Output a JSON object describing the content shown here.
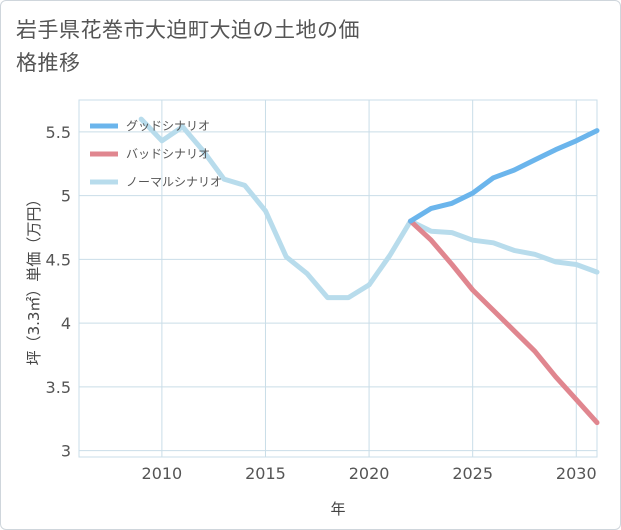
{
  "title": "岩手県花巻市大迫町大迫の土地の価格推移",
  "chart_data": {
    "type": "line",
    "title": "岩手県花巻市大迫町大迫の土地の価格推移",
    "xlabel": "年",
    "ylabel": "坪（3.3㎡）単価（万円）",
    "xlim": [
      2006,
      2031
    ],
    "ylim": [
      2.95,
      5.75
    ],
    "xticks": [
      2010,
      2015,
      2020,
      2025,
      2030
    ],
    "yticks": [
      3,
      3.5,
      4,
      4.5,
      5,
      5.5
    ],
    "ytick_labels": [
      "3",
      "3.5",
      "4",
      "4.5",
      "5",
      "5.5"
    ],
    "grid": true,
    "legend_position": "top-left",
    "series": [
      {
        "name": "グッドシナリオ",
        "color": "#6bb5ec",
        "x": [
          2022,
          2023,
          2024,
          2025,
          2026,
          2027,
          2028,
          2029,
          2030,
          2031
        ],
        "y": [
          4.8,
          4.9,
          4.94,
          5.02,
          5.14,
          5.2,
          5.28,
          5.36,
          5.43,
          5.51
        ]
      },
      {
        "name": "バッドシナリオ",
        "color": "#e0868f",
        "x": [
          2022,
          2023,
          2024,
          2025,
          2026,
          2027,
          2028,
          2029,
          2030,
          2031
        ],
        "y": [
          4.8,
          4.65,
          4.46,
          4.26,
          4.1,
          3.94,
          3.78,
          3.58,
          3.4,
          3.22
        ]
      },
      {
        "name": "ノーマルシナリオ",
        "color": "#b8dcec",
        "x": [
          2009,
          2010,
          2011,
          2012,
          2013,
          2014,
          2015,
          2016,
          2017,
          2018,
          2019,
          2020,
          2021,
          2022,
          2023,
          2024,
          2025,
          2026,
          2027,
          2028,
          2029,
          2030,
          2031
        ],
        "y": [
          5.6,
          5.43,
          5.54,
          5.35,
          5.13,
          5.08,
          4.88,
          4.52,
          4.39,
          4.2,
          4.2,
          4.3,
          4.53,
          4.8,
          4.72,
          4.71,
          4.65,
          4.63,
          4.57,
          4.54,
          4.48,
          4.46,
          4.4
        ]
      }
    ]
  }
}
